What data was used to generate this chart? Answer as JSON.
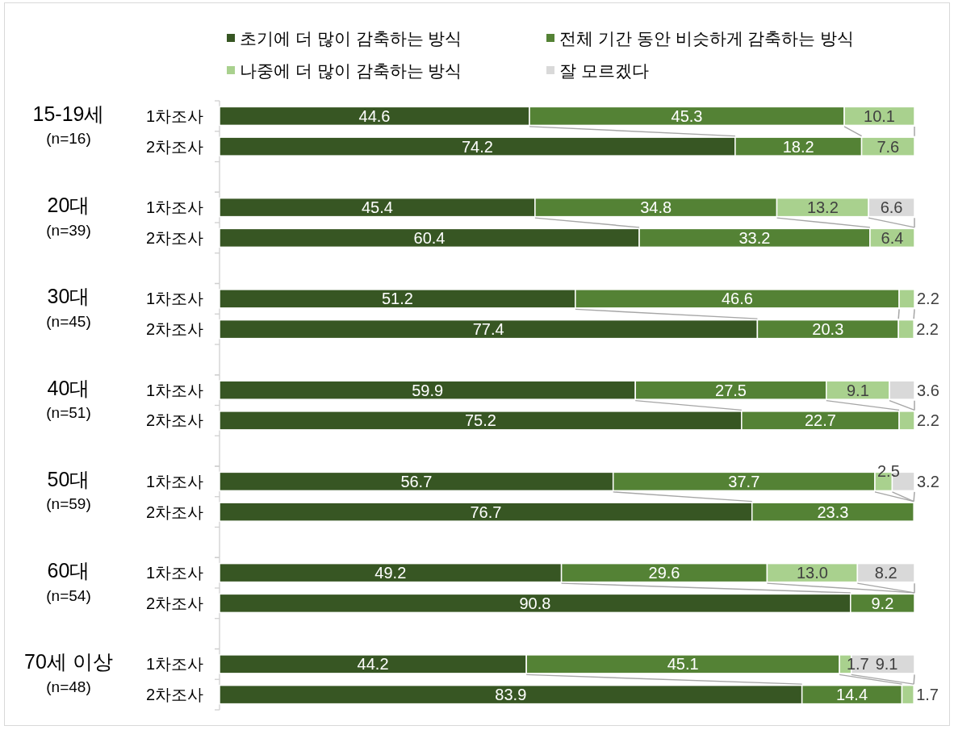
{
  "chart_data": [
    {
      "type": "bar",
      "orientation": "horizontal",
      "stacked": true,
      "data_labels": true,
      "legend": "top",
      "title": "15-19세",
      "subtitle": "(n=16)",
      "categories": [
        "1차조사",
        "2차조사"
      ],
      "series": [
        {
          "name": "초기에 더 많이 감축하는 방식",
          "color": "#375623",
          "values": [
            44.6,
            74.2
          ]
        },
        {
          "name": "전체 기간 동안 비슷하게 감축하는 방식",
          "color": "#548235",
          "values": [
            45.3,
            18.2
          ]
        },
        {
          "name": "나중에 더 많이 감축하는 방식",
          "color": "#a9d18e",
          "values": [
            10.1,
            7.6
          ]
        },
        {
          "name": "잘 모르겠다",
          "color": "#d9d9d9",
          "values": [
            null,
            null
          ]
        }
      ]
    },
    {
      "type": "bar",
      "orientation": "horizontal",
      "stacked": true,
      "data_labels": true,
      "title": "20대",
      "subtitle": "(n=39)",
      "categories": [
        "1차조사",
        "2차조사"
      ],
      "series": [
        {
          "color": "#375623",
          "values": [
            45.4,
            60.4
          ]
        },
        {
          "color": "#548235",
          "values": [
            34.8,
            33.2
          ]
        },
        {
          "color": "#a9d18e",
          "values": [
            13.2,
            6.4
          ]
        },
        {
          "color": "#d9d9d9",
          "values": [
            6.6,
            null
          ]
        }
      ]
    },
    {
      "type": "bar",
      "orientation": "horizontal",
      "stacked": true,
      "data_labels": true,
      "title": "30대",
      "subtitle": "(n=45)",
      "categories": [
        "1차조사",
        "2차조사"
      ],
      "series": [
        {
          "color": "#375623",
          "values": [
            51.2,
            77.4
          ]
        },
        {
          "color": "#548235",
          "values": [
            46.6,
            20.3
          ]
        },
        {
          "color": "#a9d18e",
          "values": [
            2.2,
            2.2
          ]
        }
      ]
    },
    {
      "type": "bar",
      "orientation": "horizontal",
      "stacked": true,
      "data_labels": true,
      "title": "40대",
      "subtitle": "(n=51)",
      "categories": [
        "1차조사",
        "2차조사"
      ],
      "series": [
        {
          "color": "#375623",
          "values": [
            59.9,
            75.2
          ]
        },
        {
          "color": "#548235",
          "values": [
            27.5,
            22.7
          ]
        },
        {
          "color": "#a9d18e",
          "values": [
            9.1,
            2.2
          ]
        },
        {
          "color": "#d9d9d9",
          "values": [
            3.6,
            null
          ]
        }
      ]
    },
    {
      "type": "bar",
      "orientation": "horizontal",
      "stacked": true,
      "data_labels": true,
      "title": "50대",
      "subtitle": "(n=59)",
      "categories": [
        "1차조사",
        "2차조사"
      ],
      "series": [
        {
          "color": "#375623",
          "values": [
            56.7,
            76.7
          ]
        },
        {
          "color": "#548235",
          "values": [
            37.7,
            23.3
          ]
        },
        {
          "color": "#a9d18e",
          "values": [
            2.5,
            null
          ]
        },
        {
          "color": "#d9d9d9",
          "values": [
            3.2,
            null
          ]
        }
      ]
    },
    {
      "type": "bar",
      "orientation": "horizontal",
      "stacked": true,
      "data_labels": true,
      "title": "60대",
      "subtitle": "(n=54)",
      "categories": [
        "1차조사",
        "2차조사"
      ],
      "series": [
        {
          "color": "#375623",
          "values": [
            49.2,
            90.8
          ]
        },
        {
          "color": "#548235",
          "values": [
            29.6,
            9.2
          ]
        },
        {
          "color": "#a9d18e",
          "values": [
            13.0,
            null
          ],
          "value_labels": [
            "13.0",
            null
          ]
        },
        {
          "color": "#d9d9d9",
          "values": [
            8.2,
            null
          ]
        }
      ]
    },
    {
      "type": "bar",
      "orientation": "horizontal",
      "stacked": true,
      "data_labels": true,
      "title": "70세 이상",
      "subtitle": "(n=48)",
      "categories": [
        "1차조사",
        "2차조사"
      ],
      "series": [
        {
          "color": "#375623",
          "values": [
            44.2,
            83.9
          ]
        },
        {
          "color": "#548235",
          "values": [
            45.1,
            14.4
          ]
        },
        {
          "color": "#a9d18e",
          "values": [
            1.7,
            1.7
          ]
        },
        {
          "color": "#d9d9d9",
          "values": [
            9.1,
            null
          ]
        }
      ]
    }
  ]
}
